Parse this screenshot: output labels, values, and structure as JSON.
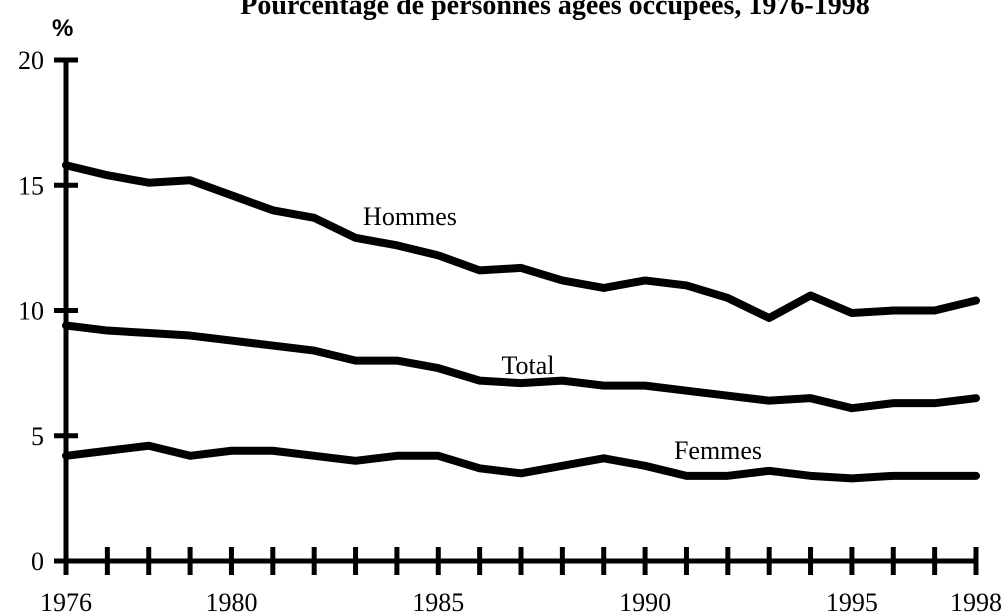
{
  "chart_data": {
    "type": "line",
    "title": "Pourcentage de personnes âgées occupées, 1976-1998",
    "y_label": "%",
    "x": [
      1976,
      1977,
      1978,
      1979,
      1980,
      1981,
      1982,
      1983,
      1984,
      1985,
      1986,
      1987,
      1988,
      1989,
      1990,
      1991,
      1992,
      1993,
      1994,
      1995,
      1996,
      1997,
      1998
    ],
    "series": [
      {
        "name": "Hommes",
        "color": "#000000",
        "values": [
          15.8,
          15.4,
          15.1,
          15.2,
          14.6,
          14.0,
          13.7,
          12.9,
          12.6,
          12.2,
          11.6,
          11.7,
          11.2,
          10.9,
          11.2,
          11.0,
          10.5,
          9.7,
          10.6,
          9.9,
          10.0,
          10.0,
          10.4
        ]
      },
      {
        "name": "Total",
        "color": "#000000",
        "values": [
          9.4,
          9.2,
          9.1,
          9.0,
          8.8,
          8.6,
          8.4,
          8.0,
          8.0,
          7.7,
          7.2,
          7.1,
          7.2,
          7.0,
          7.0,
          6.8,
          6.6,
          6.4,
          6.5,
          6.1,
          6.3,
          6.3,
          6.5
        ]
      },
      {
        "name": "Femmes",
        "color": "#000000",
        "values": [
          4.2,
          4.4,
          4.6,
          4.2,
          4.4,
          4.4,
          4.2,
          4.0,
          4.2,
          4.2,
          3.7,
          3.5,
          3.8,
          4.1,
          3.8,
          3.4,
          3.4,
          3.6,
          3.4,
          3.3,
          3.4,
          3.4,
          3.4
        ]
      }
    ],
    "xlim": [
      1976,
      1998
    ],
    "xticks": [
      1976,
      1980,
      1985,
      1990,
      1995,
      1998
    ],
    "ylim": [
      0,
      20
    ],
    "yticks": [
      0,
      5,
      10,
      15,
      20
    ]
  }
}
